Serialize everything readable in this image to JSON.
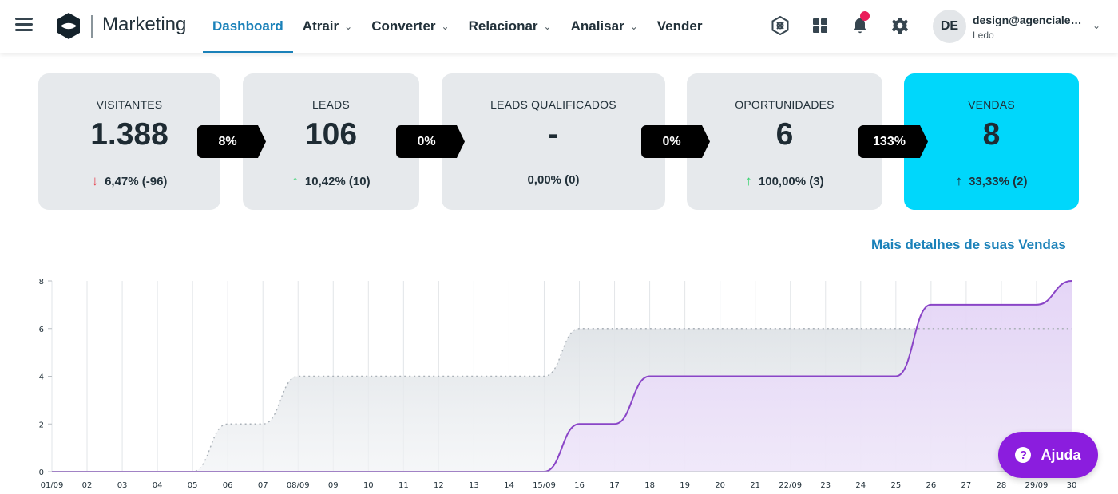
{
  "app": {
    "brand": "Marketing"
  },
  "nav": {
    "items": [
      {
        "label": "Dashboard",
        "active": true,
        "dropdown": false
      },
      {
        "label": "Atrair",
        "active": false,
        "dropdown": true
      },
      {
        "label": "Converter",
        "active": false,
        "dropdown": true
      },
      {
        "label": "Relacionar",
        "active": false,
        "dropdown": true
      },
      {
        "label": "Analisar",
        "active": false,
        "dropdown": true
      },
      {
        "label": "Vender",
        "active": false,
        "dropdown": false
      }
    ]
  },
  "user": {
    "initials": "DE",
    "email": "design@agenciale…",
    "org": "Ledo"
  },
  "funnel": {
    "cards": [
      {
        "label": "VISITANTES",
        "value": "1.388",
        "trend": "down",
        "delta": "6,47% (-96)"
      },
      {
        "label": "LEADS",
        "value": "106",
        "trend": "up",
        "delta": "10,42% (10)"
      },
      {
        "label": "LEADS QUALIFICADOS",
        "value": "-",
        "trend": "none",
        "delta": "0,00% (0)"
      },
      {
        "label": "OPORTUNIDADES",
        "value": "6",
        "trend": "up",
        "delta": "100,00% (3)"
      },
      {
        "label": "VENDAS",
        "value": "8",
        "trend": "up",
        "delta": "33,33% (2)"
      }
    ],
    "rates": [
      "8%",
      "0%",
      "0%",
      "133%"
    ]
  },
  "details_link": "Mais detalhes de suas Vendas",
  "help_button": {
    "label": "Ajuda"
  },
  "colors": {
    "accent": "#1a81b9",
    "vendas_card": "#00d7fb",
    "card_bg": "#e6e9ec",
    "help": "#8b1dde",
    "current_series": "#8a45c7",
    "previous_series": "#aab1b8"
  },
  "chart_data": {
    "type": "area",
    "x": [
      "01/09",
      "02",
      "03",
      "04",
      "05",
      "06",
      "07",
      "08/09",
      "09",
      "10",
      "11",
      "12",
      "13",
      "14",
      "15/09",
      "16",
      "17",
      "18",
      "19",
      "20",
      "21",
      "22/09",
      "23",
      "24",
      "25",
      "26",
      "27",
      "28",
      "29/09",
      "30"
    ],
    "ylim": [
      0,
      8
    ],
    "yticks": [
      0,
      2,
      4,
      6,
      8
    ],
    "grid": true,
    "series": [
      {
        "values": [
          0,
          0,
          0,
          0,
          0,
          2,
          2,
          4,
          4,
          4,
          4,
          4,
          4,
          4,
          4,
          6,
          6,
          6,
          6,
          6,
          6,
          6,
          6,
          6,
          6,
          6,
          6,
          6,
          6,
          6
        ],
        "style": "dotted-gray"
      },
      {
        "values": [
          0,
          0,
          0,
          0,
          0,
          0,
          0,
          0,
          0,
          0,
          0,
          0,
          0,
          0,
          0,
          2,
          2,
          4,
          4,
          4,
          4,
          4,
          4,
          4,
          4,
          7,
          7,
          7,
          7,
          8
        ],
        "style": "solid-purple"
      }
    ]
  }
}
